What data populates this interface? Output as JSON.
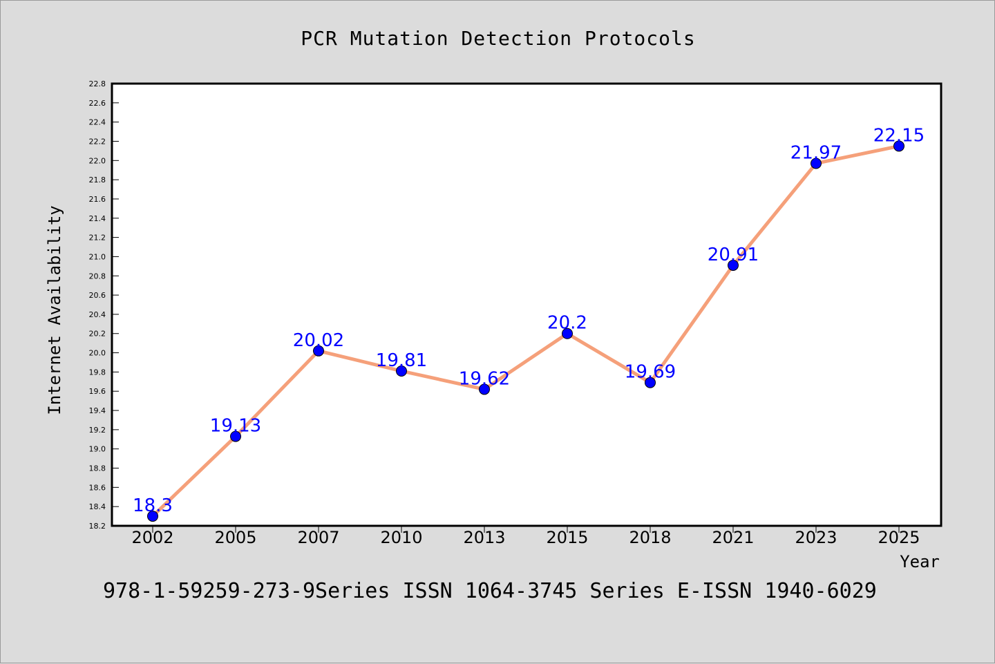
{
  "chart_data": {
    "type": "line",
    "title": "PCR Mutation Detection Protocols",
    "xlabel": "Year",
    "ylabel": "Internet Availability",
    "categories": [
      "2002",
      "2005",
      "2007",
      "2010",
      "2013",
      "2015",
      "2018",
      "2021",
      "2023",
      "2025"
    ],
    "values": [
      18.3,
      19.13,
      20.02,
      19.81,
      19.62,
      20.2,
      19.69,
      20.91,
      21.97,
      22.15
    ],
    "data_labels": [
      "18.3",
      "19.13",
      "20.02",
      "19.81",
      "19.62",
      "20.2",
      "19.69",
      "20.91",
      "21.97",
      "22.15"
    ],
    "ylim": [
      18.2,
      22.8
    ],
    "yticks": [
      "18.2",
      "18.4",
      "18.6",
      "18.8",
      "19.0",
      "19.2",
      "19.4",
      "19.6",
      "19.8",
      "20.0",
      "20.2",
      "20.4",
      "20.6",
      "20.8",
      "21.0",
      "21.2",
      "21.4",
      "21.6",
      "21.8",
      "22.0",
      "22.2",
      "22.4",
      "22.6",
      "22.8"
    ],
    "grid": false,
    "legend": "none",
    "colors": {
      "line": "#f5a07a",
      "marker": "#0000ff",
      "label": "#0000ff",
      "background": "#dcdcdc",
      "plot_background": "#ffffff"
    }
  },
  "footer": "978-1-59259-273-9Series ISSN 1064-3745 Series E-ISSN 1940-6029"
}
